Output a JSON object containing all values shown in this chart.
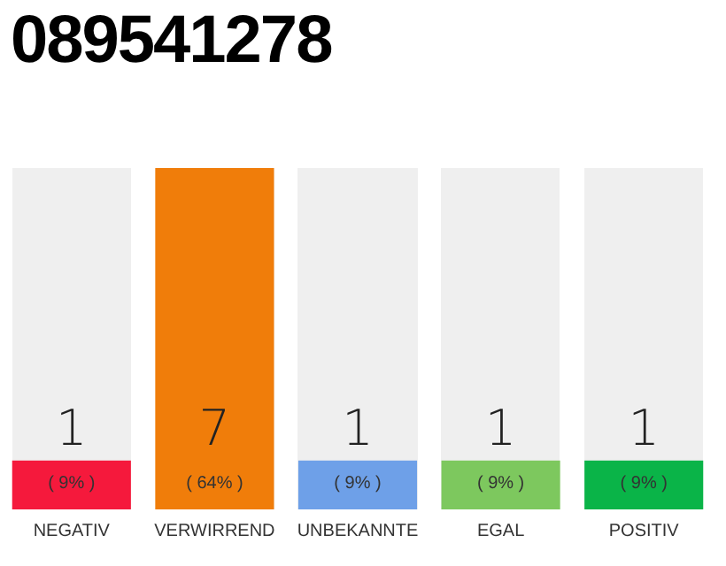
{
  "chart_data": {
    "type": "bar",
    "title": "089541278",
    "categories": [
      "NEGATIV",
      "VERWIRREND",
      "UNBEKANNTE",
      "EGAL",
      "POSITIV"
    ],
    "values": [
      1,
      7,
      1,
      1,
      1
    ],
    "colors": [
      "#f5193c",
      "#f07d0a",
      "#6ea0e8",
      "#7dc85e",
      "#0ab448"
    ],
    "data_labels": true,
    "annotations": [
      "( 9% )",
      "( 64% )",
      "( 9% )",
      "( 9% )",
      "( 9% )"
    ],
    "tick_labels": "x",
    "grid": false,
    "legend": false
  }
}
